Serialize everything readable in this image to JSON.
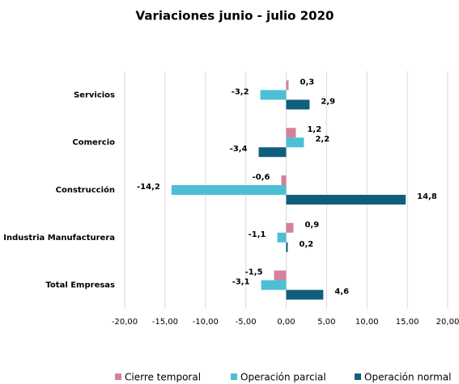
{
  "chart_data": {
    "type": "bar",
    "orientation": "horizontal",
    "title": "Variaciones junio - julio 2020",
    "categories": [
      "Servicios",
      "Comercio",
      "Construcción",
      "Industria Manufacturera",
      "Total Empresas"
    ],
    "series": [
      {
        "name": "Cierre temporal",
        "color": "#d5819c",
        "values": [
          0.3,
          1.2,
          -0.6,
          0.9,
          -1.5
        ],
        "value_labels": [
          "0,3",
          "1,2",
          "-0,6",
          "0,9",
          "-1,5"
        ]
      },
      {
        "name": "Operación parcial",
        "color": "#4dbfd5",
        "values": [
          -3.2,
          2.2,
          -14.2,
          -1.1,
          -3.1
        ],
        "value_labels": [
          "-3,2",
          "2,2",
          "-14,2",
          "-1,1",
          "-3,1"
        ]
      },
      {
        "name": "Operación normal",
        "color": "#105e7e",
        "values": [
          2.9,
          -3.4,
          14.8,
          0.2,
          4.6
        ],
        "value_labels": [
          "2,9",
          "-3,4",
          "14,8",
          "0,2",
          "4,6"
        ]
      }
    ],
    "xlim": [
      -20,
      20
    ],
    "xticks": [
      {
        "value": -20,
        "label": "-20,00"
      },
      {
        "value": -15,
        "label": "-15,00"
      },
      {
        "value": -10,
        "label": "-10,00"
      },
      {
        "value": -5,
        "label": "-5,00"
      },
      {
        "value": 0,
        "label": "0,00"
      },
      {
        "value": 5,
        "label": "5,00"
      },
      {
        "value": 10,
        "label": "10,00"
      },
      {
        "value": 15,
        "label": "15,00"
      },
      {
        "value": 20,
        "label": "20,00"
      }
    ],
    "grid": true,
    "legend": "bottom"
  }
}
